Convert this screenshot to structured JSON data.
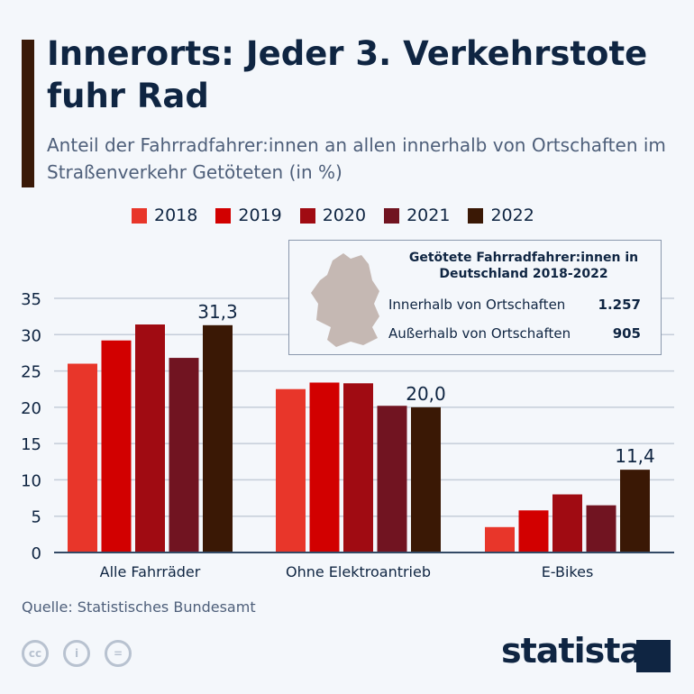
{
  "header": {
    "title": "Innerorts: Jeder 3. Verkehrstote fuhr Rad",
    "subtitle": "Anteil der Fahrradfahrer:innen an allen innerhalb von Ortschaften im Straßenverkehr Getöteten (in %)"
  },
  "chart_data": {
    "type": "bar",
    "categories": [
      "Alle Fahrräder",
      "Ohne Elektroantrieb",
      "E-Bikes"
    ],
    "series": [
      {
        "name": "2018",
        "color": "#e8362a",
        "values": [
          26.0,
          22.5,
          3.5
        ]
      },
      {
        "name": "2019",
        "color": "#d20000",
        "values": [
          29.2,
          23.4,
          5.8
        ]
      },
      {
        "name": "2020",
        "color": "#a00b12",
        "values": [
          31.4,
          23.3,
          8.0
        ]
      },
      {
        "name": "2021",
        "color": "#711421",
        "values": [
          26.8,
          20.2,
          6.5
        ]
      },
      {
        "name": "2022",
        "color": "#3a1805",
        "values": [
          31.3,
          20.0,
          11.4
        ]
      }
    ],
    "data_labels": [
      "31,3",
      "20,0",
      "11,4"
    ],
    "yticks": [
      "0",
      "5",
      "10",
      "15",
      "20",
      "25",
      "30",
      "35"
    ],
    "ylim": [
      0,
      35
    ],
    "grid": true,
    "legend": "top"
  },
  "infobox": {
    "title": "Getötete Fahrradfahrer:innen in Deutschland 2018-2022",
    "rows": [
      {
        "label": "Innerhalb von Ortschaften",
        "value": "1.257"
      },
      {
        "label": "Außerhalb von Ortschaften",
        "value": "905"
      }
    ]
  },
  "footer": {
    "source": "Quelle: Statistisches Bundesamt",
    "logo": "statista",
    "cc_icons": [
      "cc",
      "by",
      "nd"
    ]
  }
}
